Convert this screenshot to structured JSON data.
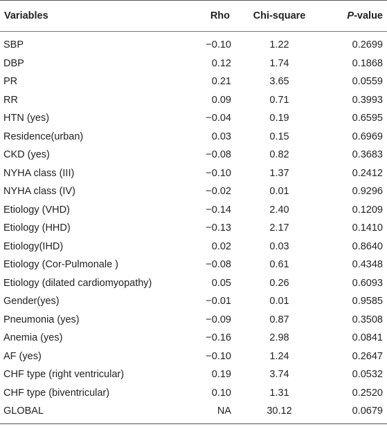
{
  "table": {
    "headers": {
      "variables": "Variables",
      "rho": "Rho",
      "chi_square": "Chi-square",
      "p_value_italic": "P",
      "p_value_rest": "-value"
    },
    "rows": [
      {
        "variable": "SBP",
        "rho": "−0.10",
        "chi_square": "1.22",
        "p_value": "0.2699"
      },
      {
        "variable": "DBP",
        "rho": "0.12",
        "chi_square": "1.74",
        "p_value": "0.1868"
      },
      {
        "variable": "PR",
        "rho": "0.21",
        "chi_square": "3.65",
        "p_value": "0.0559"
      },
      {
        "variable": "RR",
        "rho": "0.09",
        "chi_square": "0.71",
        "p_value": "0.3993"
      },
      {
        "variable": "HTN (yes)",
        "rho": "−0.04",
        "chi_square": "0.19",
        "p_value": "0.6595"
      },
      {
        "variable": "Residence(urban)",
        "rho": "0.03",
        "chi_square": "0.15",
        "p_value": "0.6969"
      },
      {
        "variable": "CKD (yes)",
        "rho": "−0.08",
        "chi_square": "0.82",
        "p_value": "0.3683"
      },
      {
        "variable": "NYHA class (III)",
        "rho": "−0.10",
        "chi_square": "1.37",
        "p_value": "0.2412"
      },
      {
        "variable": "NYHA class (IV)",
        "rho": "−0.02",
        "chi_square": "0.01",
        "p_value": "0.9296"
      },
      {
        "variable": "Etiology (VHD)",
        "rho": "−0.14",
        "chi_square": "2.40",
        "p_value": "0.1209"
      },
      {
        "variable": "Etiology (HHD)",
        "rho": "−0.13",
        "chi_square": "2.17",
        "p_value": "0.1410"
      },
      {
        "variable": "Etiology(IHD)",
        "rho": "0.02",
        "chi_square": "0.03",
        "p_value": "0.8640"
      },
      {
        "variable": "Etiology (Cor-Pulmonale )",
        "rho": "−0.08",
        "chi_square": "0.61",
        "p_value": "0.4348"
      },
      {
        "variable": "Etiology (dilated cardiomyopathy)",
        "rho": "0.05",
        "chi_square": "0.26",
        "p_value": "0.6093"
      },
      {
        "variable": "Gender(yes)",
        "rho": "−0.01",
        "chi_square": "0.01",
        "p_value": "0.9585"
      },
      {
        "variable": "Pneumonia (yes)",
        "rho": "−0.09",
        "chi_square": "0.87",
        "p_value": "0.3508"
      },
      {
        "variable": "Anemia (yes)",
        "rho": "−0.16",
        "chi_square": "2.98",
        "p_value": "0.0841"
      },
      {
        "variable": "AF (yes)",
        "rho": "−0.10",
        "chi_square": "1.24",
        "p_value": "0.2647"
      },
      {
        "variable": "CHF type (right ventricular)",
        "rho": "0.19",
        "chi_square": "3.74",
        "p_value": "0.0532"
      },
      {
        "variable": "CHF type (biventricular)",
        "rho": "0.10",
        "chi_square": "1.31",
        "p_value": "0.2520"
      },
      {
        "variable": "GLOBAL",
        "rho": "NA",
        "chi_square": "30.12",
        "p_value": "0.0679"
      }
    ]
  }
}
